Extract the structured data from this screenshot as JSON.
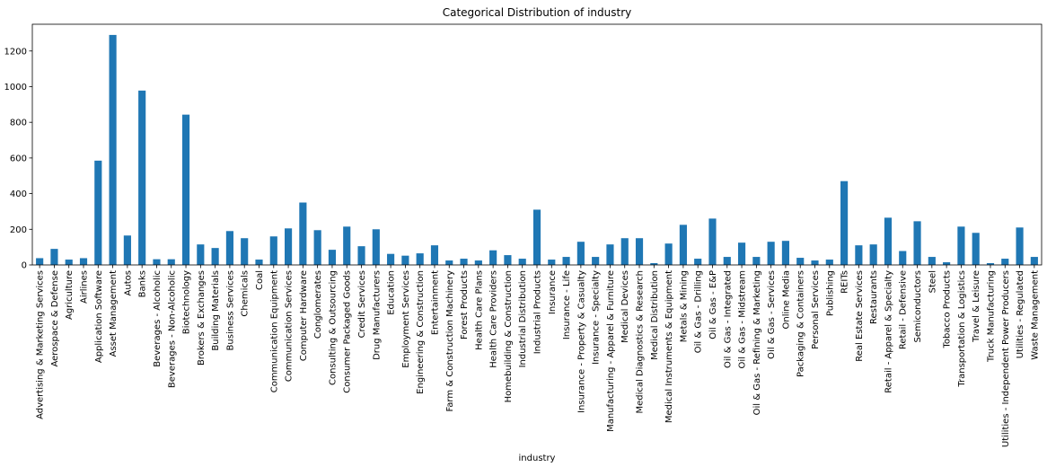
{
  "chart_data": {
    "type": "bar",
    "title": "Categorical Distribution of industry",
    "xlabel": "industry",
    "ylabel": "",
    "ylim": [
      0,
      1350
    ],
    "yticks": [
      0,
      200,
      400,
      600,
      800,
      1000,
      1200
    ],
    "bar_color": "#1f77b4",
    "grid": false,
    "categories": [
      "Advertising & Marketing Services",
      "Aerospace & Defense",
      "Agriculture",
      "Airlines",
      "Application Software",
      "Asset Management",
      "Autos",
      "Banks",
      "Beverages - Alcoholic",
      "Beverages - Non-Alcoholic",
      "Biotechnology",
      "Brokers & Exchanges",
      "Building Materials",
      "Business Services",
      "Chemicals",
      "Coal",
      "Communication Equipment",
      "Communication Services",
      "Computer Hardware",
      "Conglomerates",
      "Consulting & Outsourcing",
      "Consumer Packaged Goods",
      "Credit Services",
      "Drug Manufacturers",
      "Education",
      "Employment Services",
      "Engineering & Construction",
      "Entertainment",
      "Farm & Construction Machinery",
      "Forest Products",
      "Health Care Plans",
      "Health Care Providers",
      "Homebuilding & Construction",
      "Industrial Distribution",
      "Industrial Products",
      "Insurance",
      "Insurance - Life",
      "Insurance - Property & Casualty",
      "Insurance - Specialty",
      "Manufacturing - Apparel & Furniture",
      "Medical Devices",
      "Medical Diagnostics & Research",
      "Medical Distribution",
      "Medical Instruments & Equipment",
      "Metals & Mining",
      "Oil & Gas - Drilling",
      "Oil & Gas - E&P",
      "Oil & Gas - Integrated",
      "Oil & Gas - Midstream",
      "Oil & Gas - Refining & Marketing",
      "Oil & Gas - Services",
      "Online Media",
      "Packaging & Containers",
      "Personal Services",
      "Publishing",
      "REITs",
      "Real Estate Services",
      "Restaurants",
      "Retail - Apparel & Specialty",
      "Retail - Defensive",
      "Semiconductors",
      "Steel",
      "Tobacco Products",
      "Transportation & Logistics",
      "Travel & Leisure",
      "Truck Manufacturing",
      "Utilities - Independent Power Producers",
      "Utilities - Regulated",
      "Waste Management"
    ],
    "values": [
      38,
      90,
      30,
      38,
      585,
      1290,
      165,
      978,
      32,
      32,
      843,
      115,
      95,
      190,
      150,
      30,
      160,
      205,
      350,
      195,
      85,
      215,
      105,
      200,
      62,
      52,
      65,
      110,
      25,
      35,
      25,
      82,
      55,
      35,
      310,
      30,
      45,
      130,
      45,
      115,
      150,
      150,
      10,
      120,
      225,
      35,
      260,
      45,
      125,
      45,
      130,
      135,
      40,
      25,
      30,
      470,
      110,
      115,
      265,
      78,
      245,
      45,
      15,
      215,
      180,
      10,
      35,
      210,
      45
    ]
  }
}
